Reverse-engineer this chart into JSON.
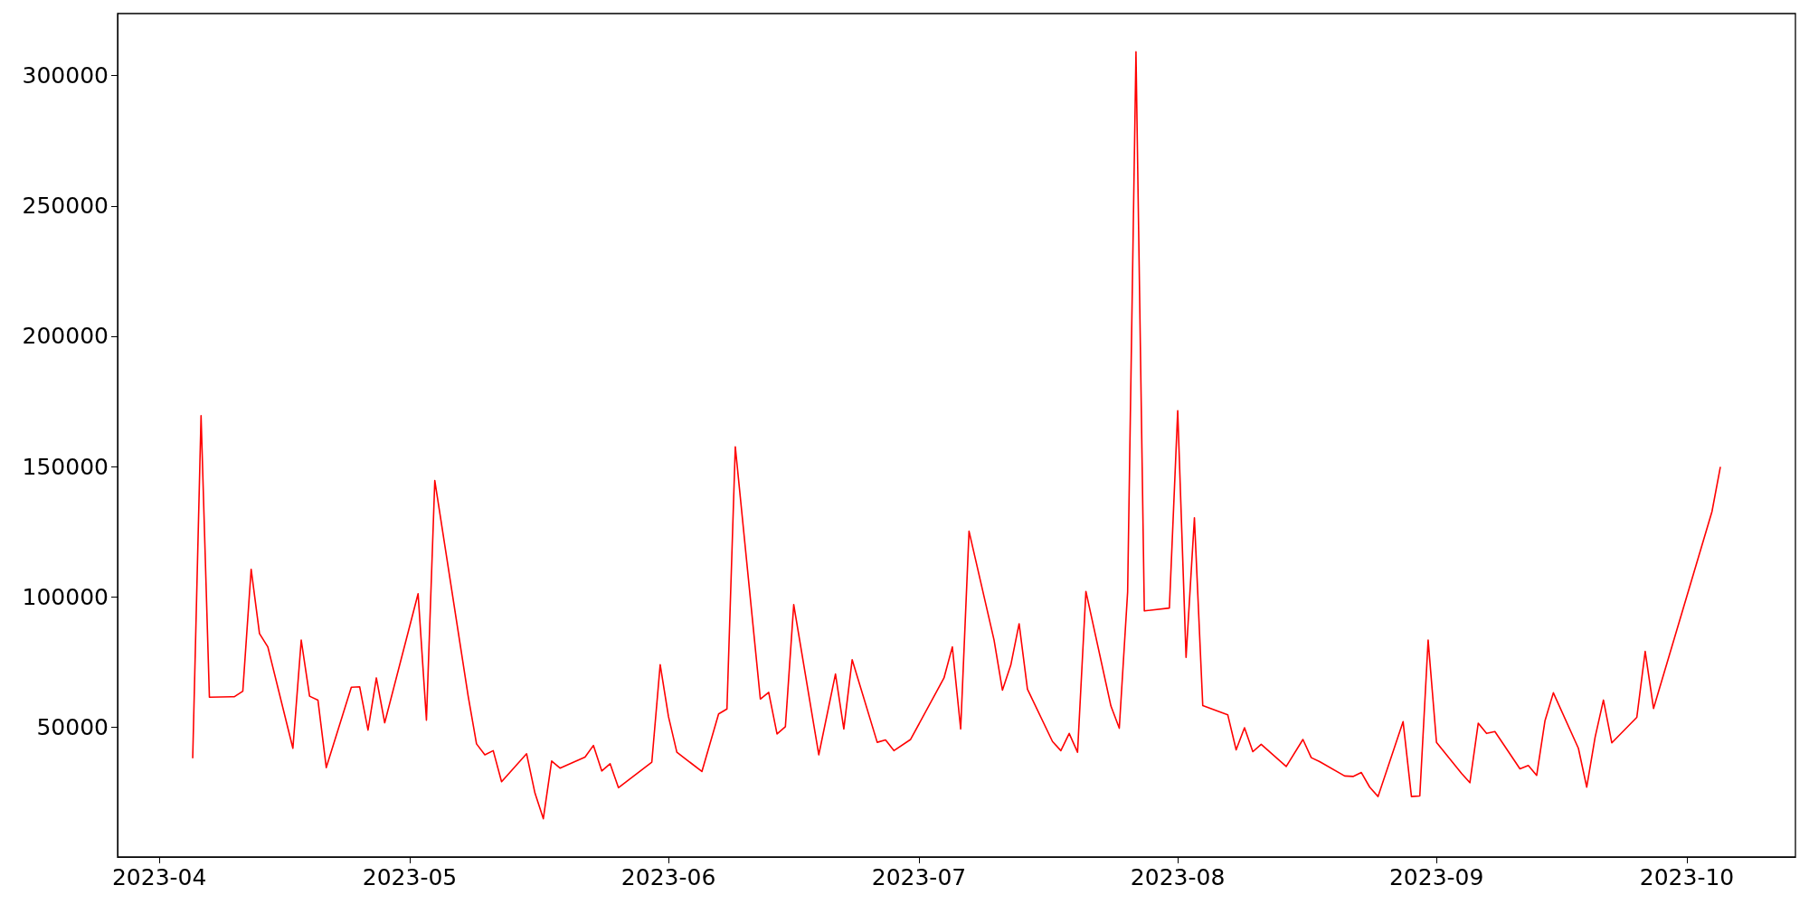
{
  "chart_data": {
    "type": "line",
    "x": [
      "2023-04-05",
      "2023-04-06",
      "2023-04-07",
      "2023-04-10",
      "2023-04-11",
      "2023-04-12",
      "2023-04-13",
      "2023-04-14",
      "2023-04-17",
      "2023-04-18",
      "2023-04-19",
      "2023-04-20",
      "2023-04-21",
      "2023-04-24",
      "2023-04-25",
      "2023-04-26",
      "2023-04-27",
      "2023-04-28",
      "2023-05-02",
      "2023-05-03",
      "2023-05-04",
      "2023-05-08",
      "2023-05-09",
      "2023-05-10",
      "2023-05-11",
      "2023-05-12",
      "2023-05-15",
      "2023-05-16",
      "2023-05-17",
      "2023-05-18",
      "2023-05-19",
      "2023-05-22",
      "2023-05-23",
      "2023-05-24",
      "2023-05-25",
      "2023-05-26",
      "2023-05-30",
      "2023-05-31",
      "2023-06-01",
      "2023-06-02",
      "2023-06-05",
      "2023-06-07",
      "2023-06-08",
      "2023-06-09",
      "2023-06-12",
      "2023-06-13",
      "2023-06-14",
      "2023-06-15",
      "2023-06-16",
      "2023-06-19",
      "2023-06-21",
      "2023-06-22",
      "2023-06-23",
      "2023-06-26",
      "2023-06-27",
      "2023-06-28",
      "2023-06-30",
      "2023-07-04",
      "2023-07-05",
      "2023-07-06",
      "2023-07-07",
      "2023-07-10",
      "2023-07-11",
      "2023-07-12",
      "2023-07-13",
      "2023-07-14",
      "2023-07-17",
      "2023-07-18",
      "2023-07-19",
      "2023-07-20",
      "2023-07-21",
      "2023-07-24",
      "2023-07-25",
      "2023-07-26",
      "2023-07-27",
      "2023-07-28",
      "2023-07-31",
      "2023-08-01",
      "2023-08-02",
      "2023-08-03",
      "2023-08-04",
      "2023-08-07",
      "2023-08-08",
      "2023-08-09",
      "2023-08-10",
      "2023-08-11",
      "2023-08-14",
      "2023-08-16",
      "2023-08-17",
      "2023-08-18",
      "2023-08-21",
      "2023-08-22",
      "2023-08-23",
      "2023-08-24",
      "2023-08-25",
      "2023-08-28",
      "2023-08-29",
      "2023-08-30",
      "2023-08-31",
      "2023-09-01",
      "2023-09-04",
      "2023-09-05",
      "2023-09-06",
      "2023-09-07",
      "2023-09-08",
      "2023-09-11",
      "2023-09-12",
      "2023-09-13",
      "2023-09-14",
      "2023-09-15",
      "2023-09-18",
      "2023-09-19",
      "2023-09-20",
      "2023-09-21",
      "2023-09-22",
      "2023-09-25",
      "2023-09-26",
      "2023-09-27",
      "2023-10-04",
      "2023-10-05"
    ],
    "series": [
      {
        "color": "#ff0000",
        "values": [
          38300,
          169500,
          61500,
          61700,
          63800,
          110600,
          85900,
          80800,
          41900,
          83400,
          61900,
          60400,
          34500,
          65300,
          65500,
          48900,
          68900,
          51700,
          101200,
          52700,
          144600,
          61900,
          43600,
          39400,
          41000,
          29100,
          39800,
          24700,
          14900,
          37000,
          34300,
          38500,
          43000,
          33200,
          36000,
          26800,
          36600,
          74000,
          54000,
          40400,
          33000,
          55100,
          57000,
          157600,
          60800,
          63400,
          47400,
          50200,
          97000,
          39400,
          70400,
          49300,
          75900,
          44200,
          45100,
          41000,
          45300,
          68900,
          80800,
          49300,
          125200,
          83400,
          64200,
          73800,
          89700,
          64600,
          44500,
          41000,
          47600,
          40400,
          102100,
          58100,
          49600,
          101900,
          309100,
          94600,
          95700,
          171400,
          76800,
          130300,
          58300,
          54700,
          41300,
          49800,
          40600,
          43400,
          34900,
          45300,
          38300,
          36800,
          31300,
          31100,
          32600,
          27000,
          23400,
          52100,
          23400,
          23600,
          83400,
          44200,
          32300,
          28700,
          51500,
          47600,
          48300,
          34000,
          35300,
          31500,
          52500,
          63200,
          41900,
          27000,
          46100,
          60400,
          44000,
          53800,
          79100,
          57200,
          132700,
          149700
        ]
      }
    ],
    "xlim": [
      "2023-03-27",
      "2023-10-14"
    ],
    "xticks": [
      {
        "value": "2023-04-01",
        "label": "2023-04"
      },
      {
        "value": "2023-05-01",
        "label": "2023-05"
      },
      {
        "value": "2023-06-01",
        "label": "2023-06"
      },
      {
        "value": "2023-07-01",
        "label": "2023-07"
      },
      {
        "value": "2023-08-01",
        "label": "2023-08"
      },
      {
        "value": "2023-09-01",
        "label": "2023-09"
      },
      {
        "value": "2023-10-01",
        "label": "2023-10"
      }
    ],
    "ylim": [
      200,
      323800
    ],
    "yticks": [
      50000,
      100000,
      150000,
      200000,
      250000,
      300000
    ],
    "marker": "none",
    "line_style": "solid"
  }
}
